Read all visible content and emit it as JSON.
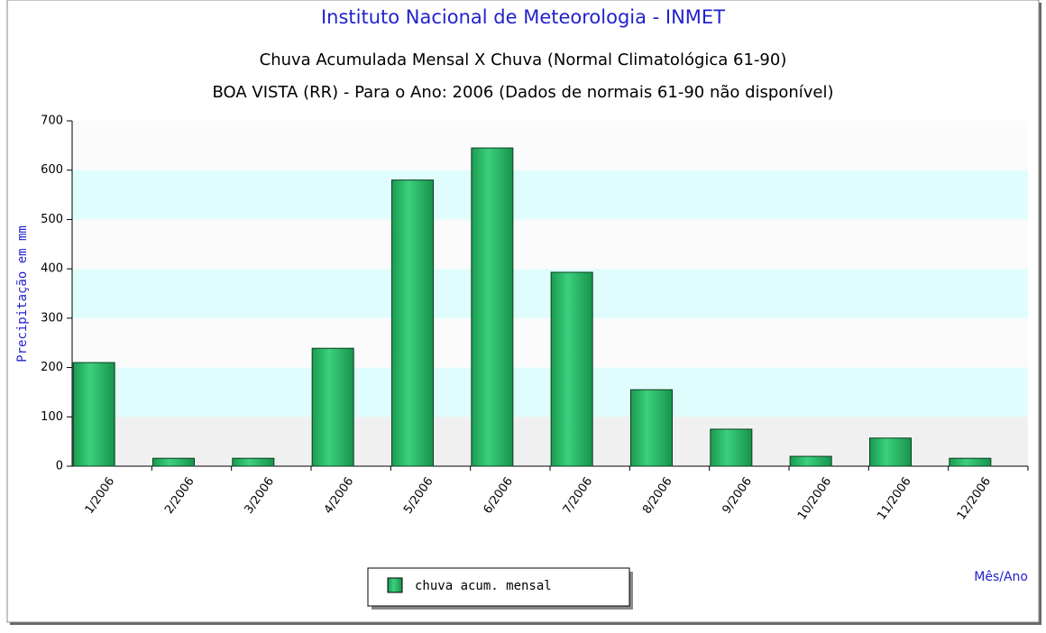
{
  "chart_data": {
    "type": "bar",
    "title": "Instituto Nacional de Meteorologia - INMET",
    "subtitle": "Chuva Acumulada Mensal X Chuva (Normal Climatológica 61-90)",
    "subtitle2": "BOA VISTA (RR) - Para o Ano: 2006 (Dados de normais 61-90 não disponível)",
    "ylabel": "Precipitação em mm",
    "xlabel": "Mês/Ano",
    "categories": [
      "1/2006",
      "2/2006",
      "3/2006",
      "4/2006",
      "5/2006",
      "6/2006",
      "7/2006",
      "8/2006",
      "9/2006",
      "10/2006",
      "11/2006",
      "12/2006"
    ],
    "series": [
      {
        "name": "chuva acum. mensal",
        "color": "#22b060",
        "values": [
          210,
          16,
          16,
          239,
          580,
          645,
          393,
          155,
          75,
          20,
          57,
          16
        ]
      }
    ],
    "ylim": [
      0,
      700
    ],
    "yticks": [
      0,
      100,
      200,
      300,
      400,
      500,
      600,
      700
    ]
  }
}
